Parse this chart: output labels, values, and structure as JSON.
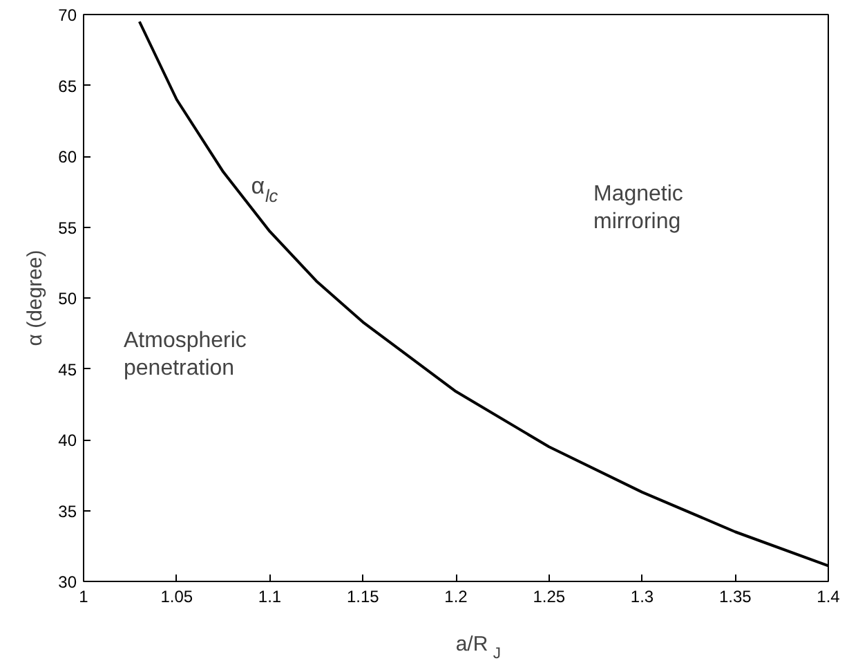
{
  "chart_data": {
    "type": "line",
    "xlabel": "a/R$_{J}$",
    "ylabel": "α (degree)",
    "x": [
      1.03,
      1.05,
      1.075,
      1.1,
      1.125,
      1.15,
      1.2,
      1.25,
      1.3,
      1.35,
      1.4
    ],
    "series": [
      {
        "color": "#000000",
        "values": [
          69.5,
          64.0,
          58.9,
          54.7,
          51.2,
          48.3,
          43.4,
          39.5,
          36.3,
          33.5,
          31.1
        ]
      }
    ],
    "xlim": [
      1,
      1.4
    ],
    "ylim": [
      30,
      70
    ],
    "xticks": [
      1,
      1.05,
      1.1,
      1.15,
      1.2,
      1.25,
      1.3,
      1.35,
      1.4
    ],
    "yticks": [
      30,
      35,
      40,
      45,
      50,
      55,
      60,
      65,
      70
    ],
    "grid": false,
    "annotations": [
      {
        "text": "α$_{lc}$",
        "x": 1.09,
        "y": 57
      },
      "Magnetic\nmirroring",
      "Atmospheric\npenetration"
    ]
  }
}
